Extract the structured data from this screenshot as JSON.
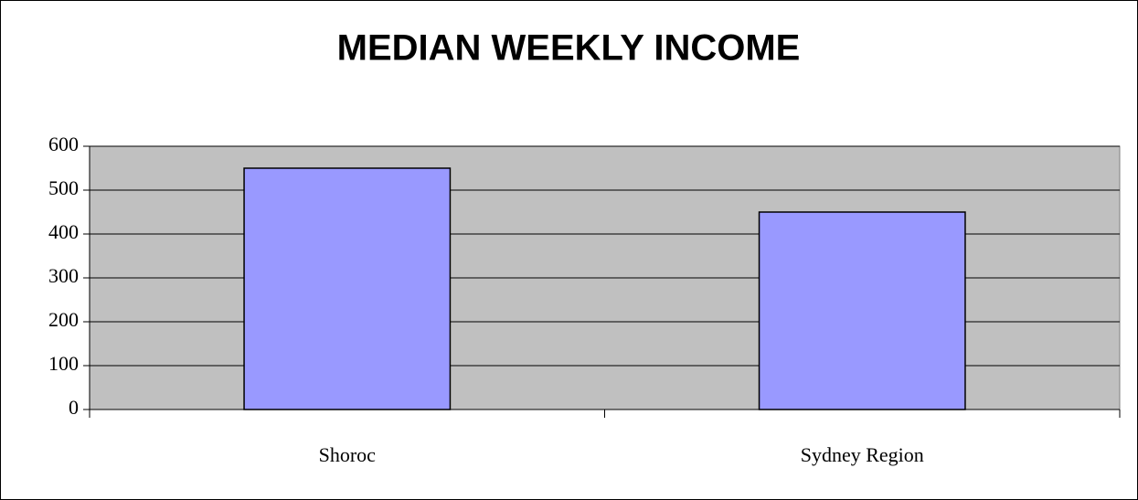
{
  "chart_data": {
    "type": "bar",
    "title": "MEDIAN WEEKLY INCOME",
    "categories": [
      "Shoroc",
      "Sydney Region"
    ],
    "values": [
      550,
      450
    ],
    "color": "#9999ff",
    "ylim": [
      0,
      600
    ],
    "yticks": [
      0,
      100,
      200,
      300,
      400,
      500,
      600
    ],
    "grid": true
  }
}
